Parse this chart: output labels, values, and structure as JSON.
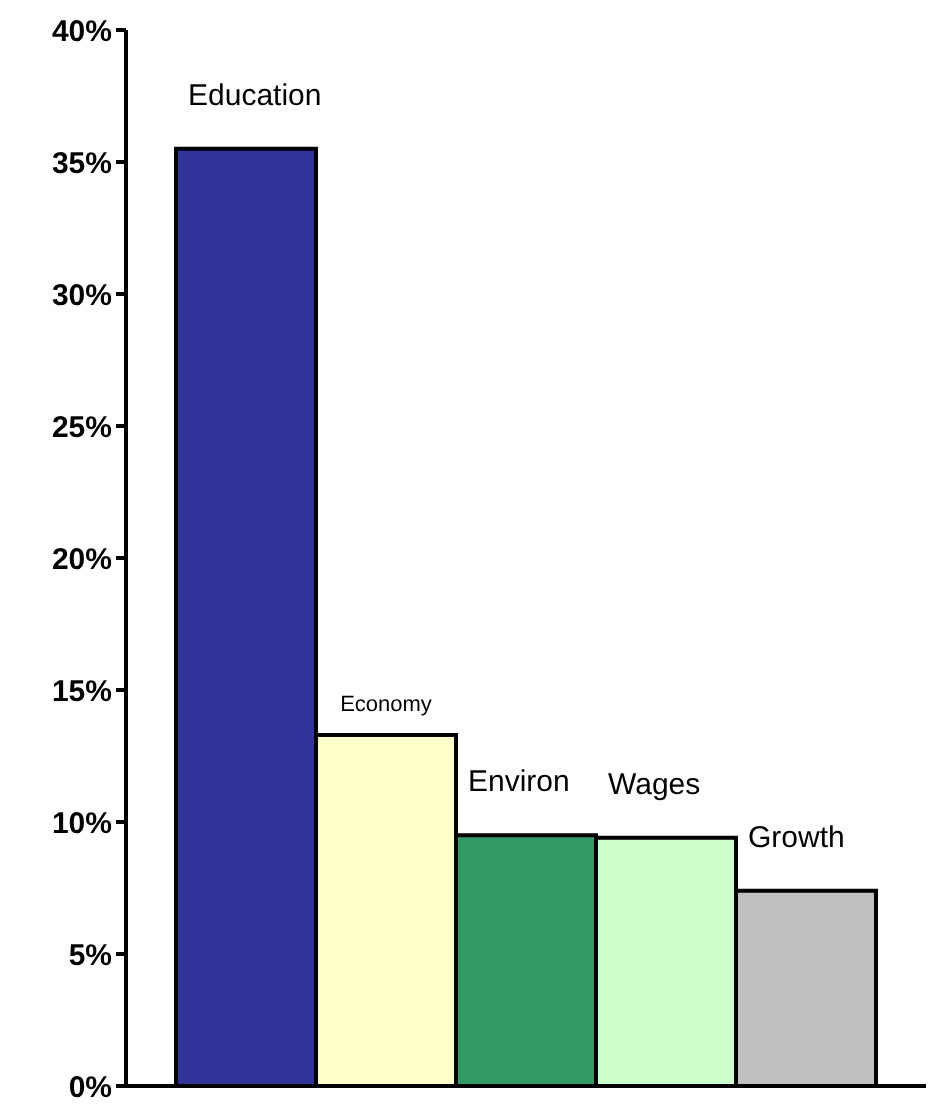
{
  "chart_data": {
    "type": "bar",
    "categories": [
      "Education",
      "Economy",
      "Environ",
      "Wages",
      "Growth"
    ],
    "values": [
      35.5,
      13.3,
      9.5,
      9.4,
      7.4
    ],
    "colors": [
      "#333399",
      "#ffffcc",
      "#339966",
      "#ccffcc",
      "#c0c0c0"
    ],
    "ylim": [
      0,
      40
    ],
    "yticks": [
      {
        "value": 0,
        "label": "0%"
      },
      {
        "value": 5,
        "label": "5%"
      },
      {
        "value": 10,
        "label": "10%"
      },
      {
        "value": 15,
        "label": "15%"
      },
      {
        "value": 20,
        "label": "20%"
      },
      {
        "value": 25,
        "label": "25%"
      },
      {
        "value": 30,
        "label": "30%"
      },
      {
        "value": 35,
        "label": "35%"
      },
      {
        "value": 40,
        "label": "40%"
      }
    ],
    "grid": false,
    "tick_labels": "y"
  }
}
